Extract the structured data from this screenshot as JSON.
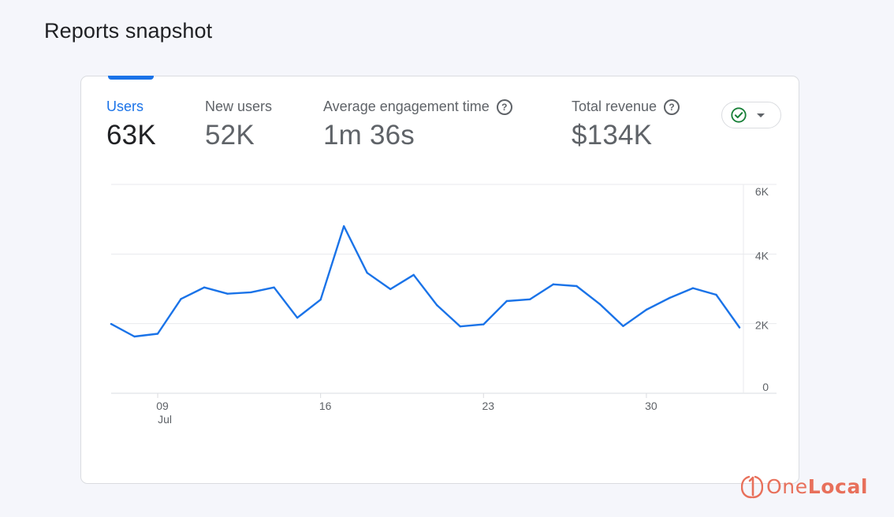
{
  "header": {
    "title": "Reports snapshot"
  },
  "metrics": [
    {
      "label": "Users",
      "value": "63K",
      "active": true
    },
    {
      "label": "New users",
      "value": "52K",
      "active": false
    },
    {
      "label": "Average engagement time",
      "value": "1m 36s",
      "active": false,
      "help": "?"
    },
    {
      "label": "Total revenue",
      "value": "$134K",
      "active": false,
      "help": "?"
    }
  ],
  "compare": {
    "icon": "check-circle-icon",
    "dropdown_icon": "caret-down-icon",
    "color": "#188038"
  },
  "chart_data": {
    "type": "line",
    "x": [
      "Jul 7",
      "Jul 8",
      "Jul 9",
      "Jul 10",
      "Jul 11",
      "Jul 12",
      "Jul 13",
      "Jul 14",
      "Jul 15",
      "Jul 16",
      "Jul 17",
      "Jul 18",
      "Jul 19",
      "Jul 20",
      "Jul 21",
      "Jul 22",
      "Jul 23",
      "Jul 24",
      "Jul 25",
      "Jul 26",
      "Jul 27",
      "Jul 28",
      "Jul 29",
      "Jul 30",
      "Jul 31",
      "Aug 1",
      "Aug 2",
      "Aug 3"
    ],
    "series": [
      {
        "values": [
          1990,
          1630,
          1710,
          2710,
          3040,
          2860,
          2900,
          3040,
          2170,
          2690,
          4800,
          3460,
          2990,
          3400,
          2530,
          1920,
          1980,
          2650,
          2700,
          3130,
          3080,
          2560,
          1930,
          2400,
          2740,
          3020,
          2830,
          1890
        ]
      }
    ],
    "x_ticks": [
      {
        "label": "09",
        "sublabel": "Jul",
        "x": "Jul 9"
      },
      {
        "label": "16",
        "x": "Jul 16"
      },
      {
        "label": "23",
        "x": "Jul 23"
      },
      {
        "label": "30",
        "x": "Jul 30"
      }
    ],
    "y_ticks": [
      {
        "label": "0",
        "value": 0
      },
      {
        "label": "2K",
        "value": 2000
      },
      {
        "label": "4K",
        "value": 4000
      },
      {
        "label": "6K",
        "value": 6000
      }
    ],
    "ylim": [
      0,
      6000
    ],
    "grid": true,
    "color": "#1a73e8",
    "title": "",
    "xlabel": "",
    "ylabel": ""
  },
  "watermark": {
    "brand_one": "One",
    "brand_local": "Local",
    "color": "#e8705b"
  }
}
